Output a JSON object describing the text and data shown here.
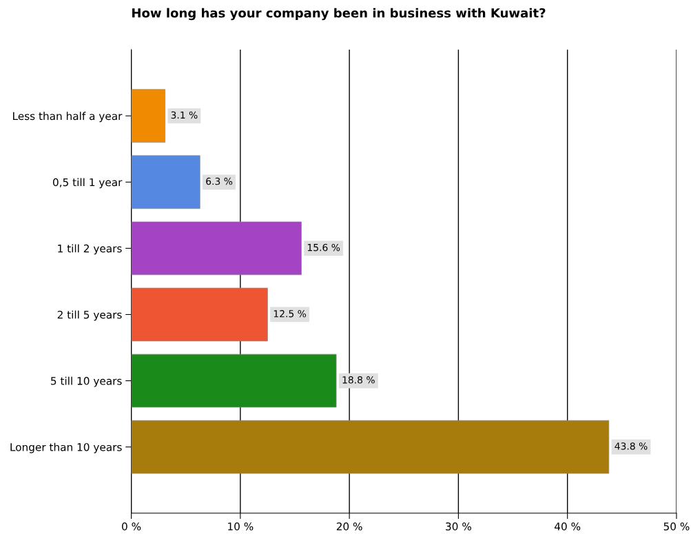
{
  "chart_data": {
    "type": "bar",
    "orientation": "horizontal",
    "title": "How long has your company been in business with Kuwait?",
    "categories": [
      "Less than half a year",
      "0,5 till 1 year",
      "1 till 2 years",
      "2 till 5 years",
      "5 till 10 years",
      "Longer than 10 years"
    ],
    "values": [
      3.1,
      6.3,
      15.6,
      12.5,
      18.8,
      43.8
    ],
    "colors": [
      "#f08a00",
      "#5588e0",
      "#a444c4",
      "#ee5533",
      "#1a8a1a",
      "#a87c0c"
    ],
    "value_labels": [
      "3.1 %",
      "6.3 %",
      "15.6 %",
      "12.5 %",
      "18.8 %",
      "43.8 %"
    ],
    "xlim": [
      0,
      50
    ],
    "xticks": [
      {
        "value": 0,
        "label": "0 %"
      },
      {
        "value": 10,
        "label": "10 %"
      },
      {
        "value": 20,
        "label": "20 %"
      },
      {
        "value": 30,
        "label": "30 %"
      },
      {
        "value": 40,
        "label": "40 %"
      },
      {
        "value": 50,
        "label": "50 %"
      }
    ],
    "grid": "x"
  }
}
